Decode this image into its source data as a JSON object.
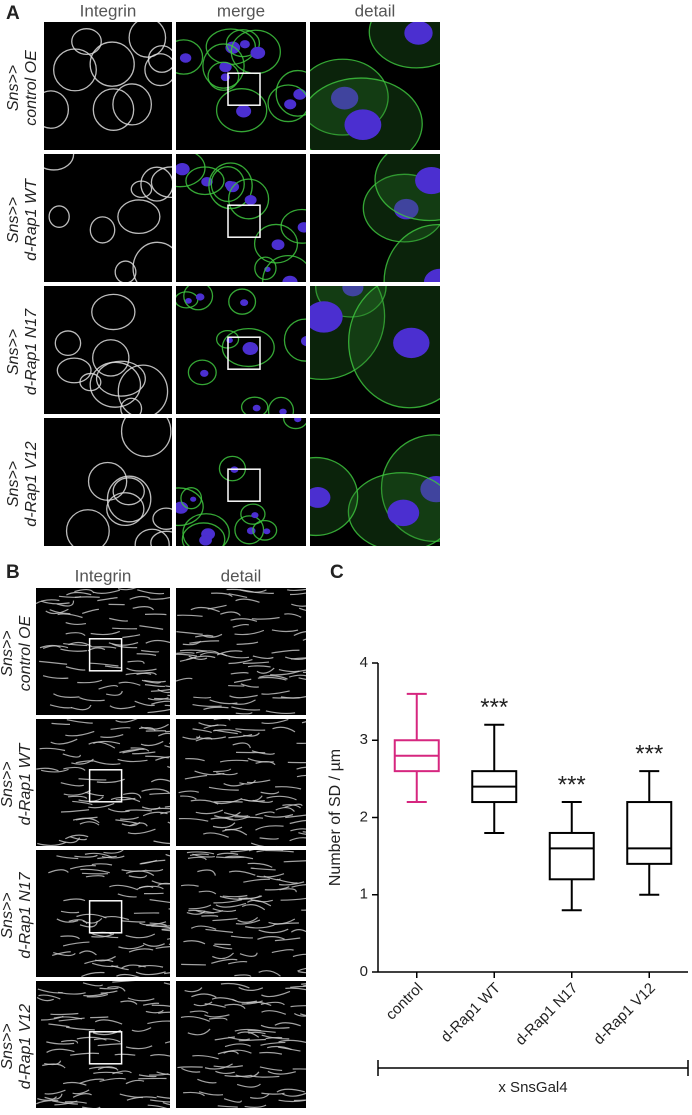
{
  "panel_a": {
    "label": "A",
    "columns": [
      "Integrin",
      "merge",
      "detail"
    ],
    "rows": [
      [
        "Sns>>",
        "control OE"
      ],
      [
        "Sns>>",
        "d-Rap1 WT"
      ],
      [
        "Sns>>",
        "d-Rap1 N17"
      ],
      [
        "Sns>>",
        "d-Rap1 V12"
      ]
    ]
  },
  "panel_b": {
    "label": "B",
    "columns": [
      "Integrin",
      "detail"
    ],
    "rows": [
      [
        "Sns>>",
        "control OE"
      ],
      [
        "Sns>>",
        "d-Rap1 WT"
      ],
      [
        "Sns>>",
        "d-Rap1 N17"
      ],
      [
        "Sns>>",
        "d-Rap1 V12"
      ]
    ]
  },
  "chart_data": {
    "type": "box",
    "label": "C",
    "ylabel": "Number of SD / µm",
    "xlabel": "x SnsGal4",
    "categories": [
      "control",
      "d-Rap1 WT",
      "d-Rap1 N17",
      "d-Rap1 V12"
    ],
    "boxes": [
      {
        "color": "#d6267f",
        "min": 2.2,
        "q1": 2.6,
        "median": 2.8,
        "q3": 3.0,
        "max": 3.6
      },
      {
        "color": "#000000",
        "min": 1.8,
        "q1": 2.2,
        "median": 2.4,
        "q3": 2.6,
        "max": 3.2,
        "annotation": "***"
      },
      {
        "color": "#000000",
        "min": 0.8,
        "q1": 1.2,
        "median": 1.6,
        "q3": 1.8,
        "max": 2.2,
        "annotation": "***"
      },
      {
        "color": "#000000",
        "min": 1.0,
        "q1": 1.4,
        "median": 1.6,
        "q3": 2.2,
        "max": 2.6,
        "annotation": "***"
      }
    ],
    "ylim": [
      0,
      4
    ],
    "yticks": [
      0,
      1,
      2,
      3,
      4
    ]
  }
}
